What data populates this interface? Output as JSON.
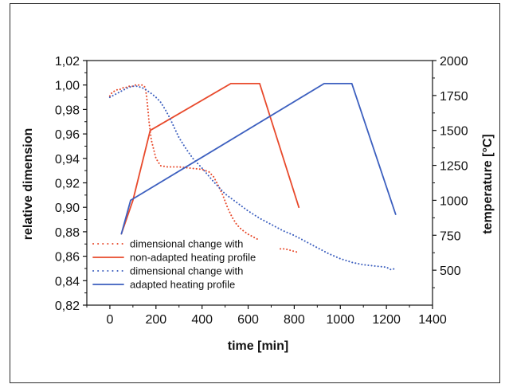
{
  "chart_data": {
    "type": "line",
    "title": "",
    "xlabel": "time [min]",
    "ylabel_left": "relative dimension",
    "ylabel_right": "temperature [°C]",
    "xlim": [
      -100,
      1400
    ],
    "ylim_left": [
      0.82,
      1.02
    ],
    "ylim_right": [
      250,
      2000
    ],
    "x_ticks": [
      "0",
      "200",
      "400",
      "600",
      "800",
      "1000",
      "1200",
      "1400"
    ],
    "y_left_ticks": [
      "0,82",
      "0,84",
      "0,86",
      "0,88",
      "0,90",
      "0,92",
      "0,94",
      "0,96",
      "0,98",
      "1,00",
      "1,02"
    ],
    "y_right_ticks": [
      "500",
      "750",
      "1000",
      "1250",
      "1500",
      "1750",
      "2000"
    ],
    "grid": false,
    "legend_position": "bottom-left",
    "series": [
      {
        "name": "dimensional change with",
        "axis": "left",
        "style": "dotted",
        "color": "#e8492b",
        "x": [
          0,
          10,
          20,
          30,
          40,
          50,
          60,
          70,
          80,
          90,
          100,
          110,
          120,
          130,
          140,
          150,
          155,
          160,
          165,
          170,
          180,
          200,
          220,
          250,
          300,
          350,
          400,
          430,
          450,
          470,
          490,
          510,
          530,
          550,
          570,
          600,
          630,
          650
        ],
        "y": [
          0.991,
          0.994,
          0.995,
          0.996,
          0.996,
          0.997,
          0.998,
          0.998,
          0.999,
          0.999,
          0.999,
          1.0,
          1.0,
          1.0,
          1.0,
          0.999,
          0.996,
          0.99,
          0.98,
          0.97,
          0.955,
          0.94,
          0.934,
          0.933,
          0.933,
          0.932,
          0.931,
          0.929,
          0.925,
          0.918,
          0.91,
          0.9,
          0.892,
          0.886,
          0.882,
          0.878,
          0.875,
          0.873
        ]
      },
      {
        "name": "",
        "axis": "left",
        "style": "dotted",
        "color": "#e8492b",
        "x": [
          740,
          760,
          780,
          800,
          820
        ],
        "y": [
          0.866,
          0.866,
          0.865,
          0.864,
          0.863
        ]
      },
      {
        "name": "non-adapted heating profile",
        "axis": "right",
        "style": "solid",
        "color": "#e8492b",
        "x": [
          50,
          100,
          175,
          525,
          650,
          820
        ],
        "y": [
          760,
          1000,
          1500,
          1835,
          1835,
          950
        ]
      },
      {
        "name": "dimensional change with",
        "axis": "left",
        "style": "dotted",
        "color": "#3c5fbf",
        "x": [
          0,
          20,
          40,
          60,
          80,
          100,
          120,
          150,
          180,
          200,
          220,
          240,
          260,
          280,
          300,
          330,
          360,
          400,
          450,
          500,
          550,
          600,
          650,
          700,
          750,
          800,
          850,
          900,
          950,
          1000,
          1050,
          1100,
          1150,
          1200,
          1220,
          1240
        ],
        "y": [
          0.99,
          0.992,
          0.994,
          0.996,
          0.998,
          0.999,
          0.999,
          0.997,
          0.993,
          0.99,
          0.986,
          0.98,
          0.973,
          0.965,
          0.957,
          0.948,
          0.94,
          0.932,
          0.921,
          0.911,
          0.904,
          0.897,
          0.891,
          0.886,
          0.881,
          0.877,
          0.872,
          0.867,
          0.862,
          0.858,
          0.855,
          0.853,
          0.852,
          0.851,
          0.849,
          0.85
        ]
      },
      {
        "name": "adapted heating profile",
        "axis": "right",
        "style": "solid",
        "color": "#3c5fbf",
        "x": [
          50,
          90,
          930,
          1050,
          1240
        ],
        "y": [
          760,
          1000,
          1835,
          1835,
          900
        ]
      }
    ],
    "legend": [
      {
        "label": "dimensional change with",
        "style": "dotted",
        "color": "#e8492b"
      },
      {
        "label": "non-adapted heating profile",
        "style": "solid",
        "color": "#e8492b"
      },
      {
        "label": "dimensional change with",
        "style": "dotted",
        "color": "#3c5fbf"
      },
      {
        "label": "adapted heating profile",
        "style": "solid",
        "color": "#3c5fbf"
      }
    ]
  }
}
